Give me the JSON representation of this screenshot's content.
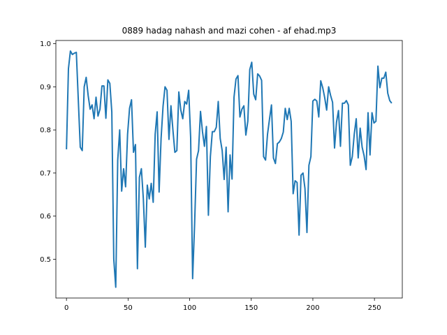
{
  "chart_data": {
    "type": "line",
    "title": "0889 hadag nahash and mazi cohen - af ehad.mp3",
    "xlabel": "",
    "ylabel": "",
    "xlim": [
      -8.6,
      272.6
    ],
    "ylim": [
      0.41,
      1.0075
    ],
    "xticks": [
      0,
      50,
      100,
      150,
      200,
      250
    ],
    "yticks": [
      0.5,
      0.6,
      0.7,
      0.8,
      0.9,
      1.0
    ],
    "ytick_labels": [
      "0.5",
      "0.6",
      "0.7",
      "0.8",
      "0.9",
      "1.0"
    ],
    "grid": false,
    "line_color": "#1f77b4",
    "series": [
      {
        "values": [
          0.755,
          0.942,
          0.983,
          0.975,
          0.978,
          0.98,
          0.87,
          0.76,
          0.752,
          0.9,
          0.922,
          0.88,
          0.848,
          0.858,
          0.826,
          0.876,
          0.832,
          0.848,
          0.902,
          0.902,
          0.827,
          0.916,
          0.908,
          0.842,
          0.5,
          0.435,
          0.73,
          0.8,
          0.658,
          0.71,
          0.668,
          0.79,
          0.85,
          0.87,
          0.748,
          0.766,
          0.478,
          0.69,
          0.71,
          0.64,
          0.528,
          0.672,
          0.64,
          0.676,
          0.632,
          0.79,
          0.842,
          0.656,
          0.78,
          0.855,
          0.9,
          0.892,
          0.778,
          0.856,
          0.8,
          0.748,
          0.752,
          0.888,
          0.846,
          0.826,
          0.866,
          0.86,
          0.892,
          0.782,
          0.455,
          0.58,
          0.732,
          0.752,
          0.843,
          0.796,
          0.762,
          0.808,
          0.602,
          0.738,
          0.796,
          0.796,
          0.806,
          0.866,
          0.78,
          0.752,
          0.685,
          0.76,
          0.61,
          0.742,
          0.686,
          0.876,
          0.918,
          0.926,
          0.83,
          0.848,
          0.856,
          0.788,
          0.82,
          0.94,
          0.957,
          0.883,
          0.87,
          0.93,
          0.925,
          0.915,
          0.738,
          0.73,
          0.79,
          0.825,
          0.858,
          0.735,
          0.722,
          0.768,
          0.772,
          0.78,
          0.795,
          0.85,
          0.824,
          0.85,
          0.82,
          0.652,
          0.682,
          0.678,
          0.556,
          0.695,
          0.7,
          0.664,
          0.562,
          0.718,
          0.738,
          0.867,
          0.871,
          0.867,
          0.83,
          0.914,
          0.898,
          0.875,
          0.846,
          0.9,
          0.88,
          0.864,
          0.758,
          0.818,
          0.845,
          0.762,
          0.862,
          0.862,
          0.868,
          0.858,
          0.718,
          0.738,
          0.79,
          0.826,
          0.735,
          0.804,
          0.76,
          0.74,
          0.708,
          0.84,
          0.742,
          0.84,
          0.816,
          0.82,
          0.948,
          0.898,
          0.92,
          0.92,
          0.934,
          0.885,
          0.868,
          0.862
        ],
        "x_step": 1.6
      }
    ]
  }
}
